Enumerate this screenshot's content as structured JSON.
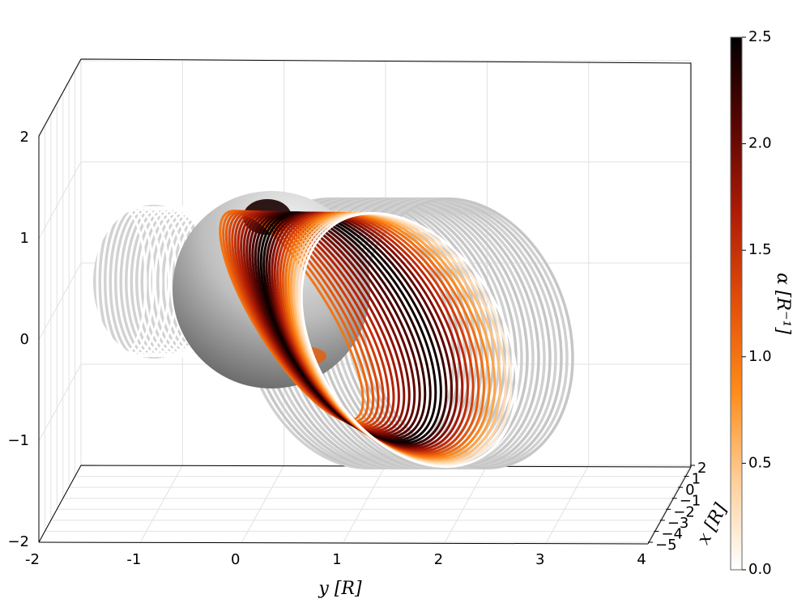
{
  "chart_data": {
    "type": "lines3d",
    "xlabel": "x [R]",
    "ylabel": "y [R]",
    "xlim": [
      -5,
      2
    ],
    "ylim": [
      -2,
      4
    ],
    "zlim": [
      -2,
      2
    ],
    "xticks": [
      2,
      1,
      0,
      {
        "value": -1,
        "label": "−1"
      },
      {
        "value": -2,
        "label": "−2"
      },
      {
        "value": -3,
        "label": "−3"
      },
      {
        "value": -4,
        "label": "−4"
      },
      {
        "value": -5,
        "label": "−5"
      }
    ],
    "yticks": [
      {
        "value": -2,
        "label": "-2"
      },
      {
        "value": -1,
        "label": "-1"
      },
      0,
      1,
      2,
      3,
      4
    ],
    "zticks": [
      {
        "value": -2,
        "label": "−2"
      },
      {
        "value": -1,
        "label": "−1"
      },
      0,
      1,
      2
    ],
    "grid": true,
    "colorbar": {
      "label": "α [R⁻¹]",
      "clim": [
        0,
        2.5
      ],
      "ticks": [
        {
          "value": 0,
          "label": "0.0"
        },
        {
          "value": 0.5,
          "label": "0.5"
        },
        {
          "value": 1,
          "label": "1.0"
        },
        {
          "value": 1.5,
          "label": "1.5"
        },
        {
          "value": 2,
          "label": "2.0"
        },
        {
          "value": 2.5,
          "label": "2.5"
        }
      ],
      "colormap": [
        "#ffffff",
        "#ffcf9a",
        "#ff8c1a",
        "#e2500a",
        "#b01c06",
        "#5a0502",
        "#000000"
      ]
    }
  }
}
